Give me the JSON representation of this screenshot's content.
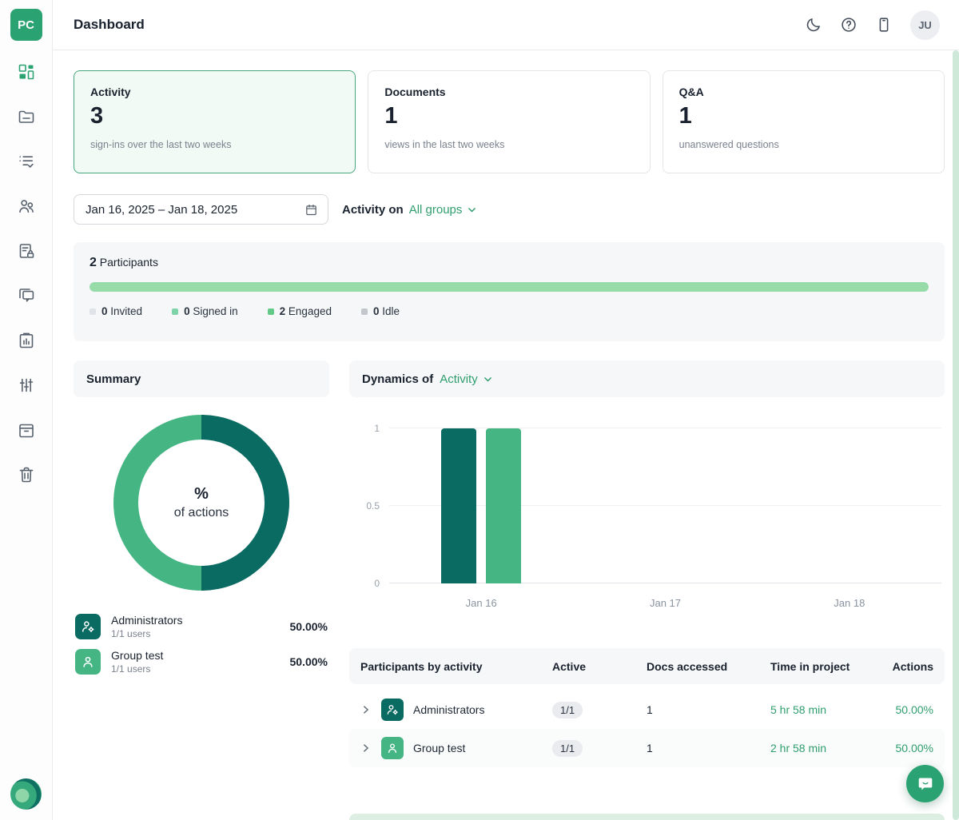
{
  "header": {
    "logo_text": "PC",
    "title": "Dashboard",
    "avatar_initials": "JU"
  },
  "sidebar": {
    "items": [
      {
        "name": "dashboard",
        "active": true
      },
      {
        "name": "documents",
        "active": false
      },
      {
        "name": "tasks",
        "active": false
      },
      {
        "name": "users",
        "active": false
      },
      {
        "name": "permissions",
        "active": false
      },
      {
        "name": "qa",
        "active": false
      },
      {
        "name": "reports",
        "active": false
      },
      {
        "name": "settings",
        "active": false
      },
      {
        "name": "archive",
        "active": false
      },
      {
        "name": "trash",
        "active": false
      }
    ]
  },
  "stat_cards": [
    {
      "title": "Activity",
      "value": "3",
      "description": "sign-ins over the last two weeks",
      "selected": true
    },
    {
      "title": "Documents",
      "value": "1",
      "description": "views in the last two weeks",
      "selected": false
    },
    {
      "title": "Q&A",
      "value": "1",
      "description": "unanswered questions",
      "selected": false
    }
  ],
  "filters": {
    "date_range": "Jan 16, 2025 – Jan 18, 2025",
    "activity_on_label": "Activity on",
    "group_filter": "All groups"
  },
  "participants": {
    "count": "2",
    "label": "Participants",
    "bar_color": "#97dba9",
    "bar_fill_percent": 100,
    "legend": [
      {
        "count": "0",
        "label": "Invited",
        "color": "#e0e3e7"
      },
      {
        "count": "0",
        "label": "Signed in",
        "color": "#7fd3a8"
      },
      {
        "count": "2",
        "label": "Engaged",
        "color": "#63c888"
      },
      {
        "count": "0",
        "label": "Idle",
        "color": "#c3c7cd"
      }
    ]
  },
  "summary": {
    "title": "Summary",
    "center_top": "%",
    "center_bottom": "of actions",
    "groups": [
      {
        "name": "Administrators",
        "detail": "1/1 users",
        "percent": "50.00%",
        "color": "#0a6b62",
        "icon": "admins"
      },
      {
        "name": "Group test",
        "detail": "1/1 users",
        "percent": "50.00%",
        "color": "#45b583",
        "icon": "group"
      }
    ]
  },
  "dynamics": {
    "title": "Dynamics of",
    "selected_metric": "Activity"
  },
  "chart_data": [
    {
      "type": "pie",
      "title": "% of actions",
      "labels": [
        "Administrators",
        "Group test"
      ],
      "values": [
        50,
        50
      ],
      "colors": [
        "#0a6b62",
        "#45b583"
      ],
      "legend_position": "bottom"
    },
    {
      "type": "bar",
      "title": "Dynamics of Activity",
      "categories": [
        "Jan 16",
        "Jan 17",
        "Jan 18"
      ],
      "series": [
        {
          "name": "Administrators",
          "values": [
            1,
            0,
            0
          ],
          "color": "#0a6b62"
        },
        {
          "name": "Group test",
          "values": [
            1,
            0,
            0
          ],
          "color": "#45b583"
        }
      ],
      "yticks": [
        0,
        0.5,
        1
      ],
      "ylim": [
        0,
        1
      ],
      "grid": true,
      "legend_position": "none"
    }
  ],
  "activity_table": {
    "headers": [
      "Participants by activity",
      "Active",
      "Docs accessed",
      "Time in project",
      "Actions"
    ],
    "rows": [
      {
        "name": "Administrators",
        "icon": "admins",
        "icon_color": "#0a6b62",
        "active": "1/1",
        "docs_accessed": "1",
        "time_in_project": "5 hr 58 min",
        "actions": "50.00%"
      },
      {
        "name": "Group test",
        "icon": "group",
        "icon_color": "#45b583",
        "active": "1/1",
        "docs_accessed": "1",
        "time_in_project": "2 hr 58 min",
        "actions": "50.00%"
      }
    ]
  },
  "theme": {
    "accent": "#2ba272",
    "dark_teal": "#0a6b62",
    "green": "#45b583",
    "link_green": "#2f9e6e"
  }
}
